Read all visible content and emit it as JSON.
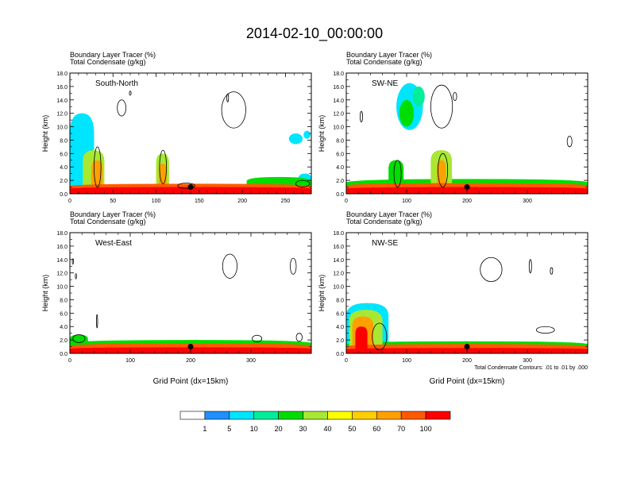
{
  "title": "2014-02-10_00:00:00",
  "chart_data": [
    {
      "type": "heatmap",
      "panel_label": "South-North",
      "subtitle_1": "Boundary Layer Tracer   (%)",
      "subtitle_2": "Total Condensate   (g/kg)",
      "ylabel": "Height (km)",
      "xlabel": "",
      "xlim": [
        0,
        280
      ],
      "ylim": [
        0,
        18
      ],
      "xticks": [
        0,
        50,
        100,
        150,
        200,
        250
      ],
      "xtick_labels": [
        "0",
        "50",
        "100",
        "150",
        "200",
        "250"
      ],
      "yticks": [
        0,
        2,
        4,
        6,
        8,
        10,
        12,
        14,
        16,
        18
      ],
      "ytick_labels": [
        "0.0",
        "2.0",
        "4.0",
        "6.0",
        "8.0",
        "10.0",
        "12.0",
        "14.0",
        "16.0",
        "18.0"
      ],
      "marker": {
        "x": 140,
        "y": 1.0
      },
      "plumes": [
        {
          "x0": 0,
          "x1": 280,
          "top": 1.5,
          "level": 70
        },
        {
          "x0": 0,
          "x1": 280,
          "top": 1.0,
          "level": 100
        },
        {
          "x0": 15,
          "x1": 40,
          "top": 6.5,
          "level": 30
        },
        {
          "x0": 25,
          "x1": 38,
          "top": 5.0,
          "level": 60
        },
        {
          "x0": 0,
          "x1": 28,
          "top": 12.0,
          "level": 5
        },
        {
          "x0": 100,
          "x1": 115,
          "top": 6.0,
          "level": 30
        },
        {
          "x0": 103,
          "x1": 112,
          "top": 4.5,
          "level": 60
        },
        {
          "x0": 205,
          "x1": 280,
          "top": 2.5,
          "level": 20
        },
        {
          "x0": 265,
          "x1": 280,
          "top": 3.0,
          "level": 5
        }
      ],
      "patches": [
        {
          "x": 262,
          "y": 8.2,
          "rx": 8,
          "ry": 0.8,
          "level": 5
        },
        {
          "x": 275,
          "y": 8.8,
          "rx": 4,
          "ry": 0.6,
          "level": 5
        }
      ],
      "contours": [
        {
          "x": 60,
          "y": 12.8,
          "rx": 5,
          "ry": 1.2
        },
        {
          "x": 70,
          "y": 15.0,
          "rx": 1,
          "ry": 0.3
        },
        {
          "x": 190,
          "y": 12.5,
          "rx": 14,
          "ry": 2.7
        },
        {
          "x": 183,
          "y": 14.3,
          "rx": 1,
          "ry": 0.6
        },
        {
          "x": 32,
          "y": 4.0,
          "rx": 4,
          "ry": 3.0
        },
        {
          "x": 108,
          "y": 4.0,
          "rx": 4,
          "ry": 2.5
        },
        {
          "x": 135,
          "y": 1.2,
          "rx": 10,
          "ry": 0.4
        },
        {
          "x": 270,
          "y": 1.5,
          "rx": 8,
          "ry": 0.5
        }
      ]
    },
    {
      "type": "heatmap",
      "panel_label": "SW-NE",
      "subtitle_1": "Boundary Layer Tracer   (%)",
      "subtitle_2": "Total Condensate   (g/kg)",
      "ylabel": "Height (km)",
      "xlabel": "",
      "xlim": [
        0,
        400
      ],
      "ylim": [
        0,
        18
      ],
      "xticks": [
        0,
        100,
        200,
        300
      ],
      "xtick_labels": [
        "0",
        "100",
        "200",
        "300"
      ],
      "yticks": [
        0,
        2,
        4,
        6,
        8,
        10,
        12,
        14,
        16,
        18
      ],
      "ytick_labels": [
        "0.0",
        "2.0",
        "4.0",
        "6.0",
        "8.0",
        "10.0",
        "12.0",
        "14.0",
        "16.0",
        "18.0"
      ],
      "marker": {
        "x": 200,
        "y": 1.0
      },
      "plumes": [
        {
          "x0": 0,
          "x1": 400,
          "top": 1.6,
          "level": 70
        },
        {
          "x0": 0,
          "x1": 400,
          "top": 1.0,
          "level": 100
        },
        {
          "x0": 0,
          "x1": 400,
          "top": 2.2,
          "level": 20
        },
        {
          "x0": 70,
          "x1": 95,
          "top": 5.0,
          "level": 20
        },
        {
          "x0": 140,
          "x1": 175,
          "top": 6.5,
          "level": 30
        },
        {
          "x0": 150,
          "x1": 165,
          "top": 5.0,
          "level": 60
        }
      ],
      "patches": [
        {
          "x": 105,
          "y": 13.0,
          "rx": 22,
          "ry": 3.5,
          "level": 5
        },
        {
          "x": 100,
          "y": 12.0,
          "rx": 12,
          "ry": 2.0,
          "level": 20
        },
        {
          "x": 120,
          "y": 14.5,
          "rx": 10,
          "ry": 1.5,
          "level": 10
        }
      ],
      "contours": [
        {
          "x": 158,
          "y": 13.0,
          "rx": 18,
          "ry": 3.2
        },
        {
          "x": 25,
          "y": 11.5,
          "rx": 2,
          "ry": 0.8
        },
        {
          "x": 370,
          "y": 7.8,
          "rx": 4,
          "ry": 0.8
        },
        {
          "x": 160,
          "y": 3.5,
          "rx": 8,
          "ry": 2.5
        },
        {
          "x": 85,
          "y": 3.0,
          "rx": 6,
          "ry": 2.0
        },
        {
          "x": 180,
          "y": 14.5,
          "rx": 3,
          "ry": 0.6
        }
      ]
    },
    {
      "type": "heatmap",
      "panel_label": "West-East",
      "subtitle_1": "Boundary Layer Tracer   (%)",
      "subtitle_2": "Total Condensate   (g/kg)",
      "ylabel": "Height (km)",
      "xlabel": "Grid Point (dx=15km)",
      "xlim": [
        0,
        400
      ],
      "ylim": [
        0,
        18
      ],
      "xticks": [
        0,
        100,
        200,
        300
      ],
      "xtick_labels": [
        "0",
        "100",
        "200",
        "300"
      ],
      "yticks": [
        0,
        2,
        4,
        6,
        8,
        10,
        12,
        14,
        16,
        18
      ],
      "ytick_labels": [
        "0.0",
        "2.0",
        "4.0",
        "6.0",
        "8.0",
        "10.0",
        "12.0",
        "14.0",
        "16.0",
        "18.0"
      ],
      "marker": {
        "x": 200,
        "y": 1.0
      },
      "plumes": [
        {
          "x0": 0,
          "x1": 400,
          "top": 1.5,
          "level": 70
        },
        {
          "x0": 0,
          "x1": 400,
          "top": 0.9,
          "level": 100
        },
        {
          "x0": 0,
          "x1": 400,
          "top": 2.0,
          "level": 20
        },
        {
          "x0": 0,
          "x1": 30,
          "top": 2.8,
          "level": 20
        }
      ],
      "patches": [],
      "contours": [
        {
          "x": 5,
          "y": 13.7,
          "rx": 1,
          "ry": 0.4
        },
        {
          "x": 10,
          "y": 11.5,
          "rx": 1,
          "ry": 0.4
        },
        {
          "x": 45,
          "y": 4.8,
          "rx": 1,
          "ry": 1.0
        },
        {
          "x": 265,
          "y": 13.0,
          "rx": 12,
          "ry": 1.8
        },
        {
          "x": 370,
          "y": 13.0,
          "rx": 5,
          "ry": 1.2
        },
        {
          "x": 15,
          "y": 2.2,
          "rx": 10,
          "ry": 0.6
        },
        {
          "x": 310,
          "y": 2.2,
          "rx": 8,
          "ry": 0.5
        },
        {
          "x": 380,
          "y": 2.4,
          "rx": 5,
          "ry": 0.6
        }
      ]
    },
    {
      "type": "heatmap",
      "panel_label": "NW-SE",
      "subtitle_1": "Boundary Layer Tracer   (%)",
      "subtitle_2": "Total Condensate   (g/kg)",
      "ylabel": "Height (km)",
      "xlabel": "Grid Point (dx=15km)",
      "contour_note": "Total Condensate Contours: .01 to .01 by .000",
      "xlim": [
        0,
        400
      ],
      "ylim": [
        0,
        18
      ],
      "xticks": [
        0,
        100,
        200,
        300
      ],
      "xtick_labels": [
        "0",
        "100",
        "200",
        "300"
      ],
      "yticks": [
        0,
        2,
        4,
        6,
        8,
        10,
        12,
        14,
        16,
        18
      ],
      "ytick_labels": [
        "0.0",
        "2.0",
        "4.0",
        "6.0",
        "8.0",
        "10.0",
        "12.0",
        "14.0",
        "16.0",
        "18.0"
      ],
      "marker": {
        "x": 200,
        "y": 1.0
      },
      "plumes": [
        {
          "x0": 0,
          "x1": 400,
          "top": 1.4,
          "level": 70
        },
        {
          "x0": 0,
          "x1": 400,
          "top": 0.8,
          "level": 100
        },
        {
          "x0": 0,
          "x1": 400,
          "top": 1.8,
          "level": 20
        },
        {
          "x0": 0,
          "x1": 70,
          "top": 7.5,
          "level": 5
        },
        {
          "x0": 5,
          "x1": 60,
          "top": 6.5,
          "level": 30
        },
        {
          "x0": 10,
          "x1": 45,
          "top": 5.5,
          "level": 60
        },
        {
          "x0": 15,
          "x1": 35,
          "top": 4.0,
          "level": 100
        }
      ],
      "patches": [],
      "contours": [
        {
          "x": 240,
          "y": 12.5,
          "rx": 18,
          "ry": 1.8
        },
        {
          "x": 305,
          "y": 13.0,
          "rx": 2,
          "ry": 1.0
        },
        {
          "x": 340,
          "y": 12.3,
          "rx": 2,
          "ry": 0.5
        },
        {
          "x": 330,
          "y": 3.5,
          "rx": 15,
          "ry": 0.5
        },
        {
          "x": 55,
          "y": 2.5,
          "rx": 12,
          "ry": 2.0
        }
      ]
    }
  ],
  "colorbar": {
    "colors": [
      "#ffffff",
      "#1e90ff",
      "#00e5ff",
      "#00ee9a",
      "#00dd00",
      "#a8e832",
      "#ffff00",
      "#ffd000",
      "#ffa000",
      "#ff5a00",
      "#ff0000"
    ],
    "labels": [
      "1",
      "5",
      "10",
      "20",
      "30",
      "40",
      "50",
      "60",
      "70",
      "100"
    ]
  }
}
